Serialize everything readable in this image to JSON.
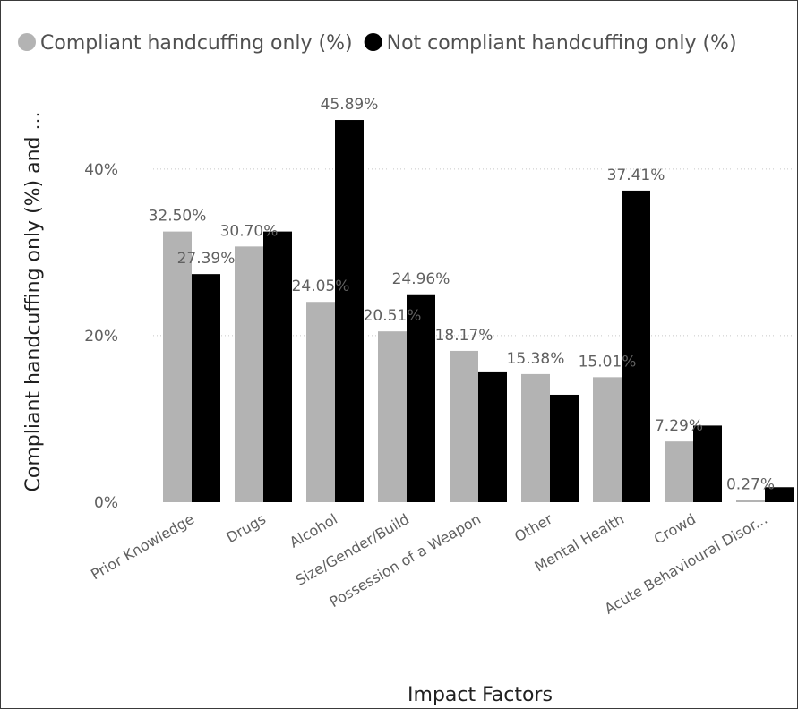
{
  "chart_data": {
    "type": "bar",
    "xlabel": "Impact Factors",
    "ylabel": "Compliant handcuffing only (%) and ...",
    "ylim": [
      0,
      0.46
    ],
    "yticks": [
      {
        "value": 0,
        "label": "0%"
      },
      {
        "value": 0.2,
        "label": "20%"
      },
      {
        "value": 0.4,
        "label": "40%"
      }
    ],
    "grid": true,
    "legend": "top",
    "categories": [
      "Prior Knowledge",
      "Drugs",
      "Alcohol",
      "Size/Gender/Build",
      "Possession of a Weapon",
      "Other",
      "Mental Health",
      "Crowd",
      "Acute Behavioural Disor..."
    ],
    "series": [
      {
        "name": "Compliant handcuffing only (%)",
        "color": "#b3b3b3",
        "values": [
          0.325,
          0.307,
          0.2405,
          0.2051,
          0.1817,
          0.1538,
          0.1501,
          0.0729,
          0.0027
        ],
        "labels": [
          "32.50%",
          "30.70%",
          "24.05%",
          "20.51%",
          "18.17%",
          "15.38%",
          "15.01%",
          "7.29%",
          "0.27%"
        ]
      },
      {
        "name": "Not compliant handcuffing only (%)",
        "color": "#000000",
        "values": [
          0.2739,
          0.325,
          0.4589,
          0.2496,
          0.157,
          0.129,
          0.3741,
          0.092,
          0.018
        ],
        "labels": [
          "27.39%",
          "",
          "45.89%",
          "24.96%",
          "",
          "",
          "37.41%",
          "",
          ""
        ]
      }
    ]
  }
}
